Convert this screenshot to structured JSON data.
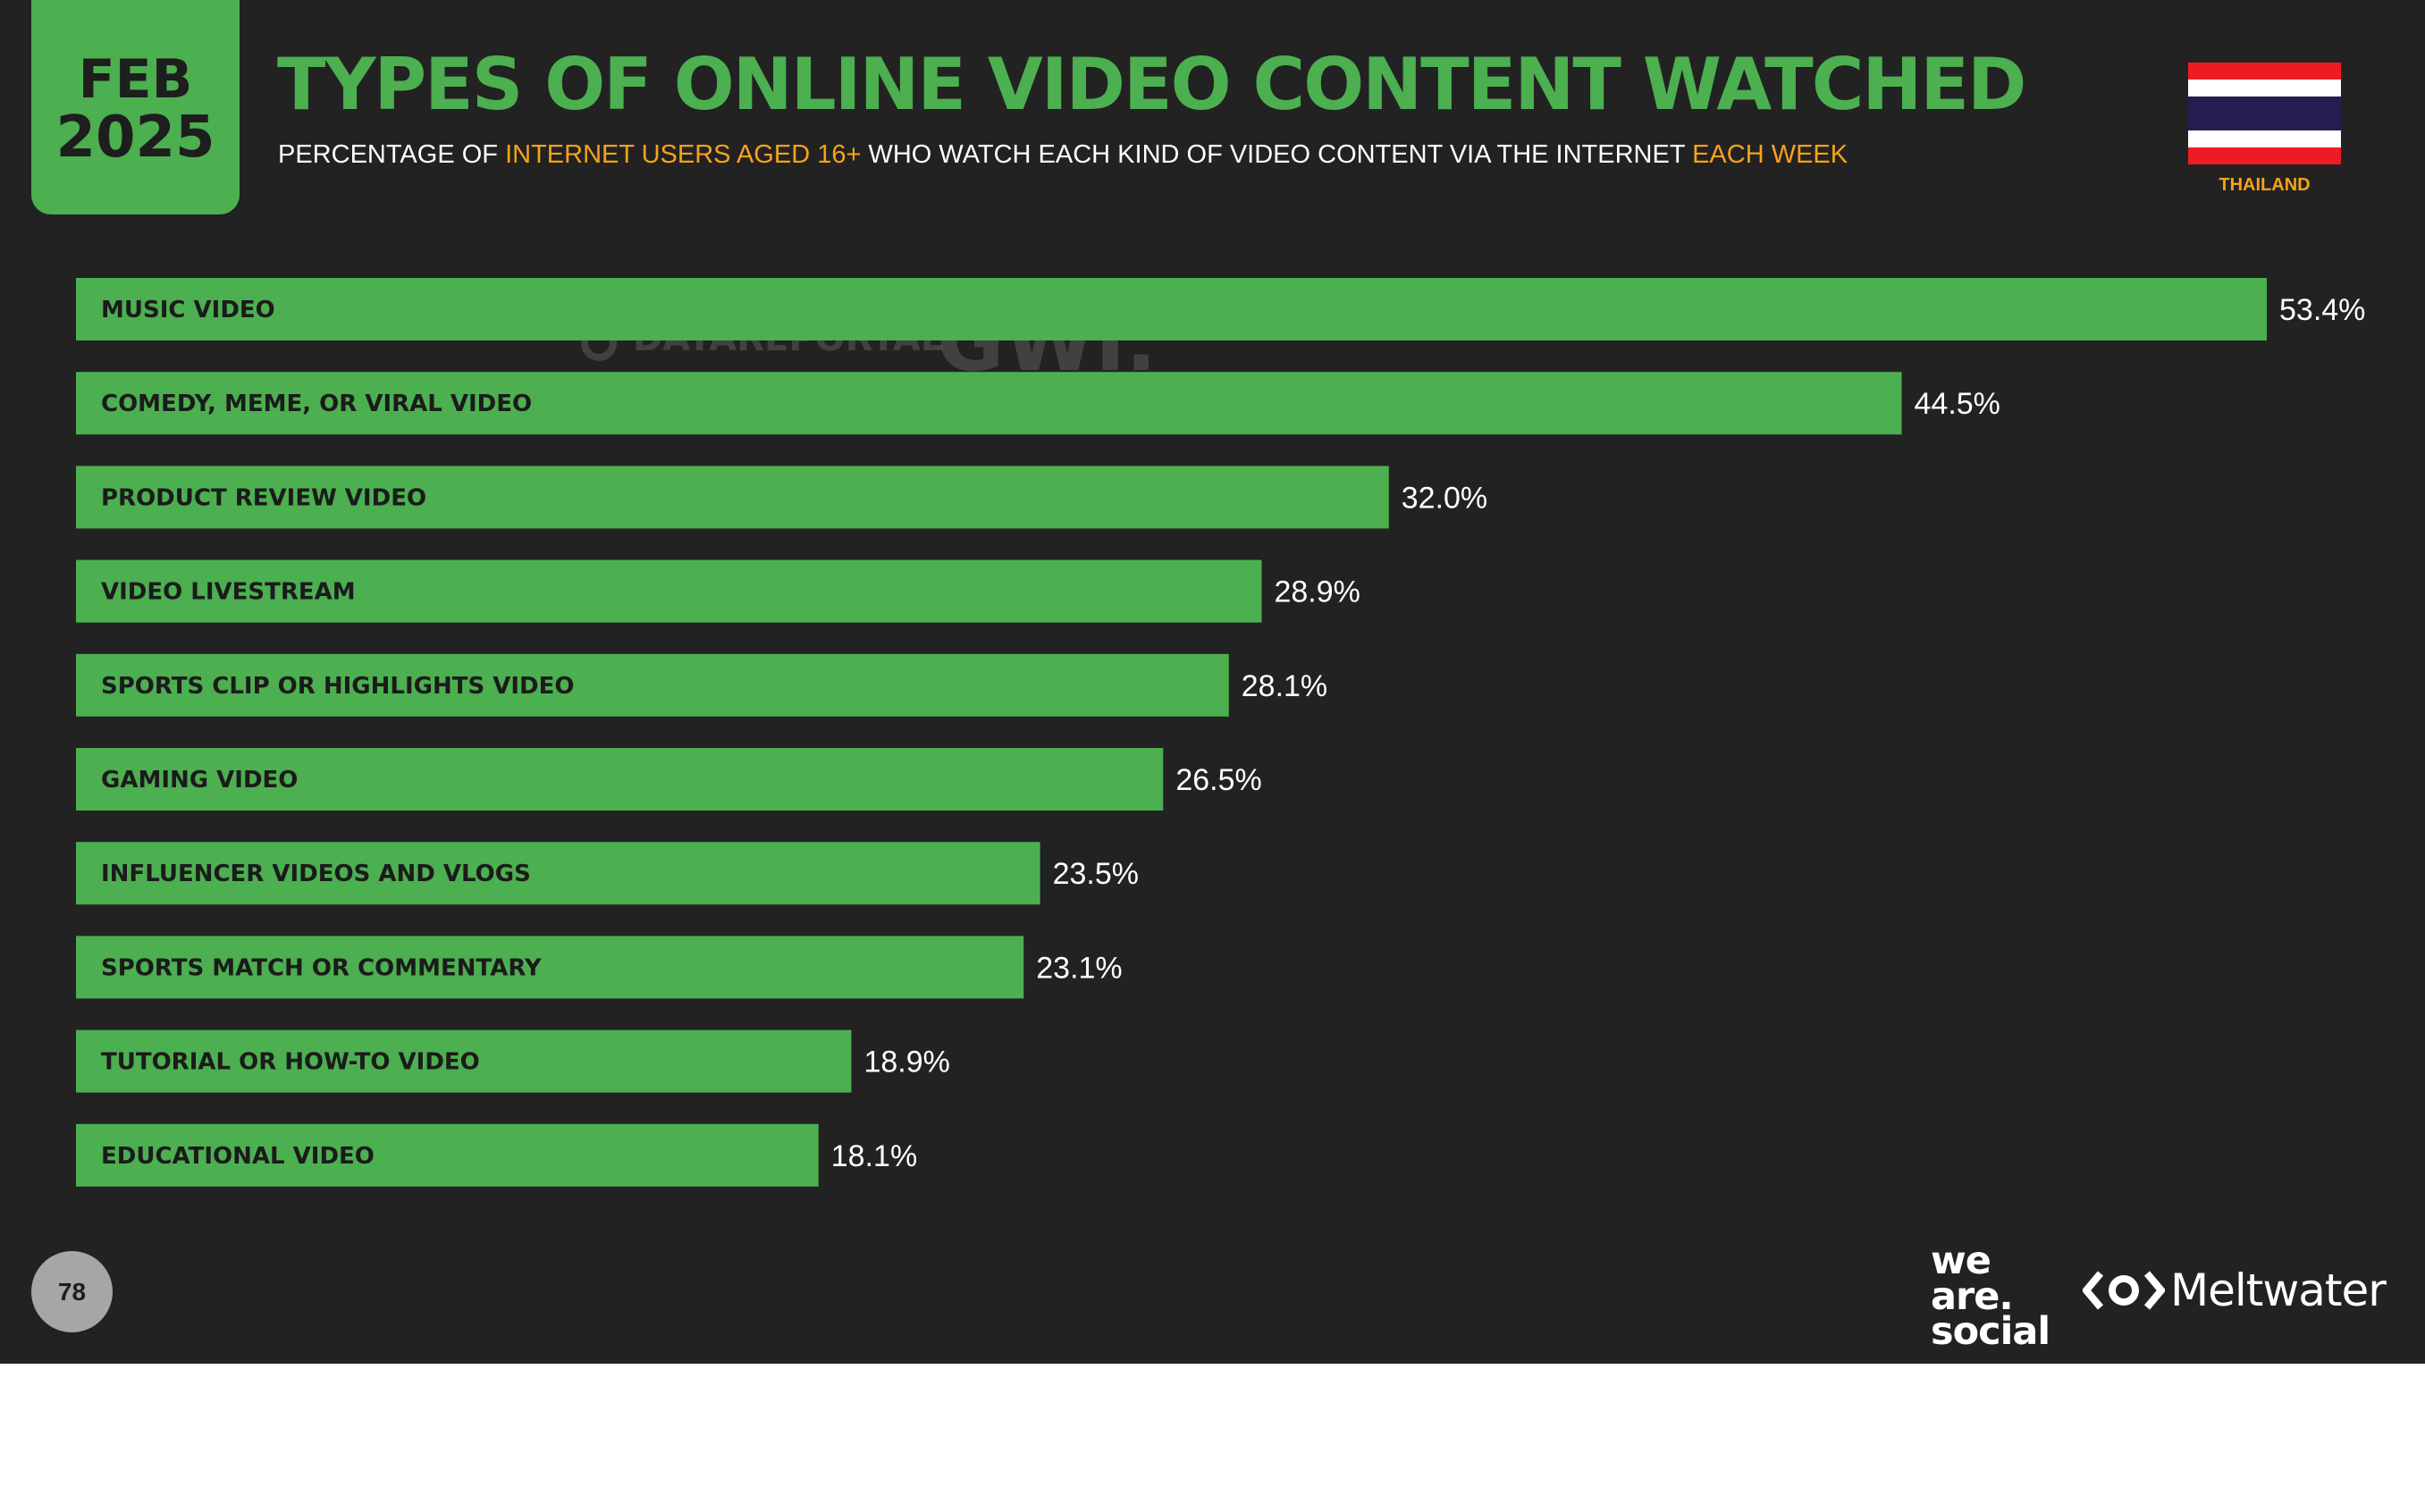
{
  "header": {
    "date_month": "FEB",
    "date_year": "2025",
    "title": "TYPES OF ONLINE VIDEO CONTENT WATCHED",
    "subtitle_part1": "PERCENTAGE OF ",
    "subtitle_highlight1": "INTERNET USERS AGED 16+",
    "subtitle_part2": " WHO WATCH EACH KIND OF VIDEO CONTENT VIA THE INTERNET ",
    "subtitle_highlight2": "EACH WEEK",
    "country": "THAILAND"
  },
  "colors": {
    "background": "#222222",
    "bar": "#4CAF50",
    "title": "#4CAF50",
    "highlight": "#F7A21B",
    "flag_red": "#ED1C24",
    "flag_white": "#FFFFFF",
    "flag_blue": "#241D4F"
  },
  "chart_data": {
    "type": "bar",
    "orientation": "horizontal",
    "categories": [
      "MUSIC VIDEO",
      "COMEDY, MEME, OR VIRAL VIDEO",
      "PRODUCT REVIEW VIDEO",
      "VIDEO LIVESTREAM",
      "SPORTS CLIP OR HIGHLIGHTS VIDEO",
      "GAMING VIDEO",
      "INFLUENCER VIDEOS AND VLOGS",
      "SPORTS MATCH OR COMMENTARY",
      "TUTORIAL OR HOW-TO VIDEO",
      "EDUCATIONAL VIDEO"
    ],
    "values": [
      53.4,
      44.5,
      32.0,
      28.9,
      28.1,
      26.5,
      23.5,
      23.1,
      18.9,
      18.1
    ],
    "value_labels": [
      "53.4%",
      "44.5%",
      "32.0%",
      "28.9%",
      "28.1%",
      "26.5%",
      "23.5%",
      "23.1%",
      "18.9%",
      "18.1%"
    ],
    "unit": "%",
    "grid": false,
    "legend": "none"
  },
  "watermarks": {
    "datareportal": "DATAREPORTAL",
    "gwi": "GWI."
  },
  "footer": {
    "page_number": "78",
    "logo_we": "we",
    "logo_are": "are.",
    "logo_social": "social",
    "logo_meltwater": "Meltwater"
  }
}
